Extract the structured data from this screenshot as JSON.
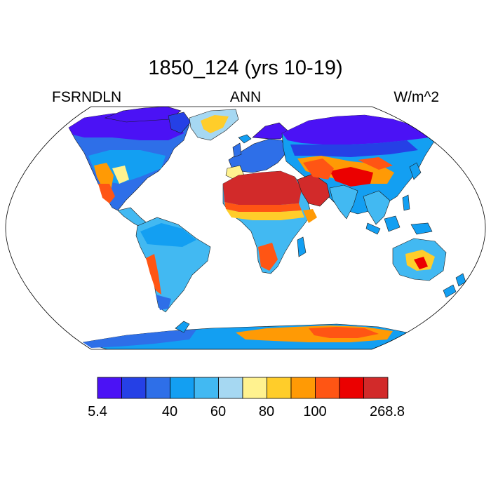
{
  "title": "1850_124 (yrs 10-19)",
  "subtitle": {
    "left": "FSRNDLN",
    "center": "ANN",
    "right": "W/m^2"
  },
  "colorbar": {
    "colors": [
      "#4b12f5",
      "#2540e6",
      "#2e6fe8",
      "#139ff2",
      "#42b9f2",
      "#a6d8f2",
      "#fff28f",
      "#ffcd2a",
      "#ff9a05",
      "#ff5514",
      "#eb0000",
      "#d22a2a"
    ],
    "labels": [
      "5.4",
      "40",
      "60",
      "80",
      "100",
      "268.8"
    ]
  },
  "map": {
    "projection": "Robinson",
    "ocean_color": "#ffffff",
    "regions": [
      {
        "name": "North Africa",
        "level": "highest"
      },
      {
        "name": "Arabian Peninsula",
        "level": "highest"
      },
      {
        "name": "East Antarctica",
        "level": "high"
      },
      {
        "name": "Central Asia",
        "level": "high"
      },
      {
        "name": "Central Australia",
        "level": "moderate"
      },
      {
        "name": "Greenland",
        "level": "moderate"
      },
      {
        "name": "Canada and Siberia",
        "level": "lowest"
      }
    ]
  }
}
